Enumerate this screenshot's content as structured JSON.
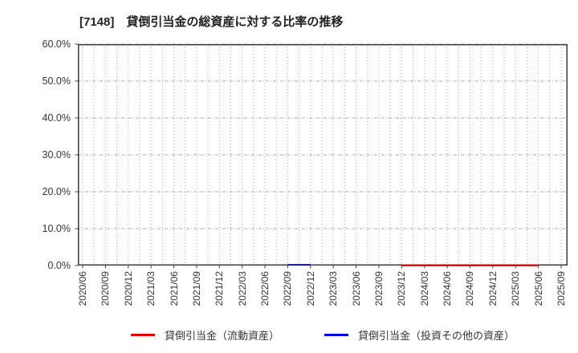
{
  "title": "[7148]　貸倒引当金の総資産に対する比率の推移",
  "colors": {
    "series_red": "#e00000",
    "series_blue": "#0000e0",
    "grid": "#a8a8a8",
    "axis": "#3c3c3c",
    "text": "#333333",
    "background": "#ffffff"
  },
  "chart_data": {
    "type": "line",
    "title": "[7148]　貸倒引当金の総資産に対する比率の推移",
    "xlabel": "",
    "ylabel": "",
    "ylim": [
      0,
      60
    ],
    "y_tick_labels": [
      "0.0%",
      "10.0%",
      "20.0%",
      "30.0%",
      "40.0%",
      "50.0%",
      "60.0%"
    ],
    "y_tick_values": [
      0,
      10,
      20,
      30,
      40,
      50,
      60
    ],
    "grid": true,
    "legend_position": "bottom",
    "categories": [
      "2020/06",
      "2020/09",
      "2020/12",
      "2021/03",
      "2021/06",
      "2021/09",
      "2021/12",
      "2022/03",
      "2022/06",
      "2022/09",
      "2022/12",
      "2023/03",
      "2023/06",
      "2023/09",
      "2023/12",
      "2024/03",
      "2024/06",
      "2024/09",
      "2024/12",
      "2025/03",
      "2025/06",
      "2025/09"
    ],
    "series": [
      {
        "name": "貸倒引当金（流動資産）",
        "color": "#e00000",
        "values": [
          null,
          null,
          null,
          null,
          null,
          null,
          null,
          null,
          null,
          null,
          null,
          null,
          null,
          null,
          0.0,
          0.0,
          0.0,
          0.0,
          0.0,
          0.0,
          0.0,
          null
        ]
      },
      {
        "name": "貸倒引当金（投資その他の資産）",
        "color": "#0000e0",
        "values": [
          null,
          null,
          null,
          null,
          null,
          null,
          null,
          null,
          null,
          0.2,
          0.2,
          null,
          null,
          null,
          null,
          null,
          null,
          null,
          null,
          null,
          null,
          null
        ]
      }
    ]
  },
  "legend": {
    "items": [
      {
        "label": "貸倒引当金（流動資産）",
        "color": "#e00000"
      },
      {
        "label": "貸倒引当金（投資その他の資産）",
        "color": "#0000e0"
      }
    ]
  }
}
